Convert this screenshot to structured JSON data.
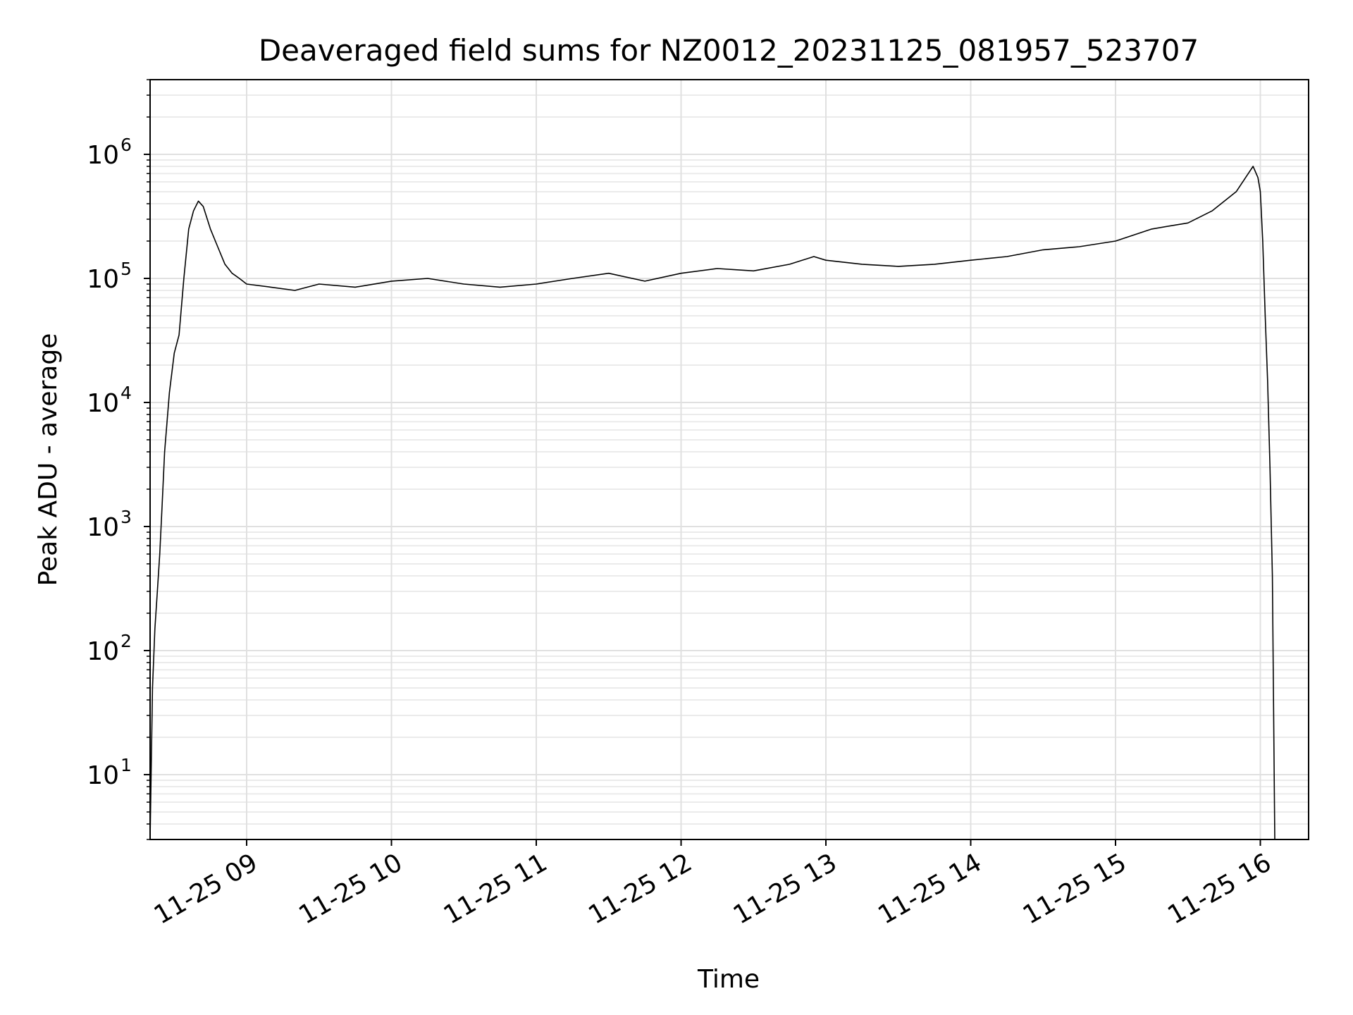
{
  "chart_data": {
    "type": "line",
    "title": "Deaveraged field sums for NZ0012_20231125_081957_523707",
    "xlabel": "Time",
    "ylabel": "Peak ADU - average",
    "yscale": "log",
    "ylim": [
      3,
      4000000
    ],
    "xlim": [
      "2023-11-25 08:20",
      "2023-11-25 16:20"
    ],
    "grid": true,
    "xtick_labels": [
      "11-25 09",
      "11-25 10",
      "11-25 11",
      "11-25 12",
      "11-25 13",
      "11-25 14",
      "11-25 15",
      "11-25 16"
    ],
    "ytick_labels": [
      {
        "base": "10",
        "exp": "1"
      },
      {
        "base": "10",
        "exp": "2"
      },
      {
        "base": "10",
        "exp": "3"
      },
      {
        "base": "10",
        "exp": "4"
      },
      {
        "base": "10",
        "exp": "5"
      },
      {
        "base": "10",
        "exp": "6"
      }
    ],
    "line_color": "#000000",
    "series": [
      {
        "x": [
          "2023-11-25 08:20",
          "2023-11-25 08:21",
          "2023-11-25 08:22",
          "2023-11-25 08:23",
          "2023-11-25 08:24",
          "2023-11-25 08:25",
          "2023-11-25 08:26",
          "2023-11-25 08:28",
          "2023-11-25 08:30",
          "2023-11-25 08:32",
          "2023-11-25 08:34",
          "2023-11-25 08:36",
          "2023-11-25 08:38",
          "2023-11-25 08:40",
          "2023-11-25 08:42",
          "2023-11-25 08:45",
          "2023-11-25 08:48",
          "2023-11-25 08:51",
          "2023-11-25 08:54",
          "2023-11-25 08:57",
          "2023-11-25 09:00",
          "2023-11-25 09:10",
          "2023-11-25 09:20",
          "2023-11-25 09:30",
          "2023-11-25 09:45",
          "2023-11-25 10:00",
          "2023-11-25 10:15",
          "2023-11-25 10:30",
          "2023-11-25 10:45",
          "2023-11-25 11:00",
          "2023-11-25 11:15",
          "2023-11-25 11:30",
          "2023-11-25 11:45",
          "2023-11-25 12:00",
          "2023-11-25 12:15",
          "2023-11-25 12:30",
          "2023-11-25 12:45",
          "2023-11-25 12:55",
          "2023-11-25 13:00",
          "2023-11-25 13:15",
          "2023-11-25 13:30",
          "2023-11-25 13:45",
          "2023-11-25 14:00",
          "2023-11-25 14:15",
          "2023-11-25 14:30",
          "2023-11-25 14:45",
          "2023-11-25 15:00",
          "2023-11-25 15:15",
          "2023-11-25 15:30",
          "2023-11-25 15:40",
          "2023-11-25 15:50",
          "2023-11-25 15:55",
          "2023-11-25 15:57",
          "2023-11-25 15:59",
          "2023-11-25 16:00",
          "2023-11-25 16:01",
          "2023-11-25 16:02",
          "2023-11-25 16:03",
          "2023-11-25 16:04",
          "2023-11-25 16:05",
          "2023-11-25 16:06"
        ],
        "y": [
          3,
          50,
          150,
          300,
          600,
          1500,
          4000,
          12000,
          25000,
          35000,
          100000,
          250000,
          350000,
          420000,
          380000,
          250000,
          180000,
          130000,
          110000,
          100000,
          90000,
          85000,
          80000,
          90000,
          85000,
          95000,
          100000,
          90000,
          85000,
          90000,
          100000,
          110000,
          95000,
          110000,
          120000,
          115000,
          130000,
          150000,
          140000,
          130000,
          125000,
          130000,
          140000,
          150000,
          170000,
          180000,
          200000,
          250000,
          280000,
          350000,
          500000,
          700000,
          800000,
          650000,
          500000,
          200000,
          50000,
          15000,
          3000,
          400,
          3
        ]
      }
    ]
  }
}
